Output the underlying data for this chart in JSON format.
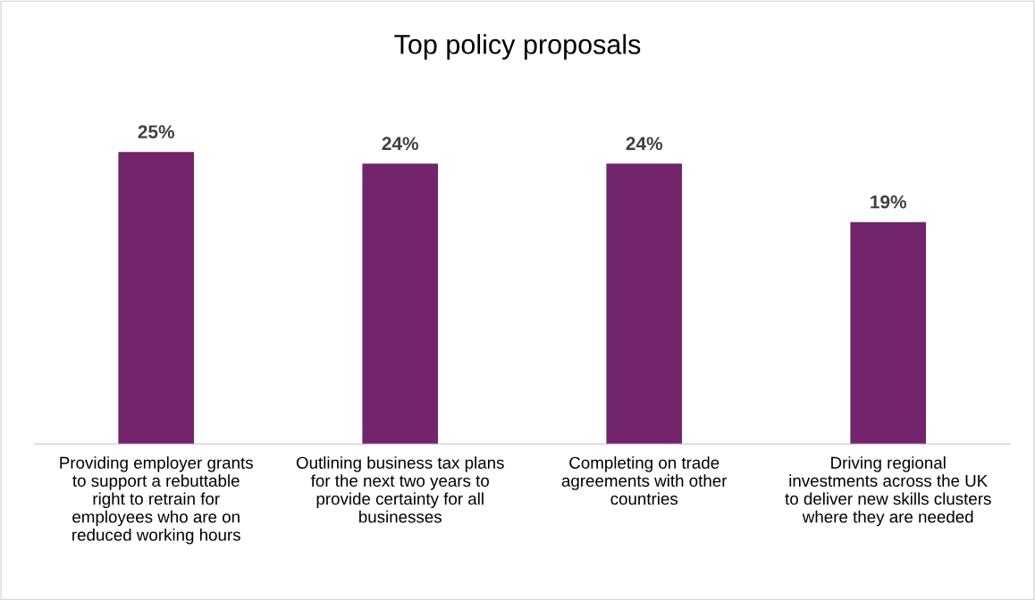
{
  "chart_data": {
    "type": "bar",
    "title": "Top policy proposals",
    "categories": [
      "Providing employer grants\nto support a rebuttable\nright to retrain for\nemployees who are on\nreduced working hours",
      "Outlining business tax plans\nfor the next two years to\nprovide certainty for all\nbusinesses",
      "Completing on trade\nagreements with other\ncountries",
      "Driving regional\ninvestments across the UK\nto deliver new skills clusters\nwhere they are needed"
    ],
    "values": [
      25,
      24,
      24,
      19
    ],
    "value_labels": [
      "25%",
      "24%",
      "24%",
      "19%"
    ],
    "color": "#72246c"
  }
}
